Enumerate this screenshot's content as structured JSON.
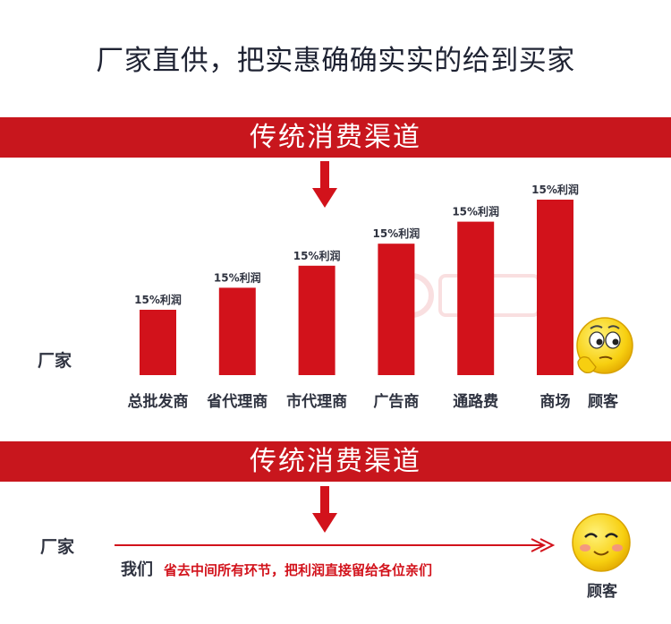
{
  "headline": "厂家直供，把实惠确确实实的给到买家",
  "banner_top": "传统消费渠道",
  "banner_bottom": "传统消费渠道",
  "left_label_top": "厂家",
  "left_label_bottom": "厂家",
  "customer_top": "顾客",
  "customer_bottom": "顾客",
  "slogan": {
    "we": "我们",
    "message": "省去中间所有环节，把利润直接留给各位亲们"
  },
  "colors": {
    "bar": "#d2121b",
    "banner": "#c8161d",
    "arrow": "#d2121b"
  },
  "chart_data": {
    "type": "bar",
    "categories": [
      "总批发商",
      "省代理商",
      "市代理商",
      "广告商",
      "通路费",
      "商场"
    ],
    "values": [
      1,
      2,
      3,
      4,
      5,
      6
    ],
    "data_labels": [
      "15%利润",
      "15%利润",
      "15%利润",
      "15%利润",
      "15%利润",
      "15%利润"
    ],
    "title": "",
    "xlabel": "",
    "ylabel": "",
    "ylim": [
      0,
      6
    ],
    "grid": false
  }
}
